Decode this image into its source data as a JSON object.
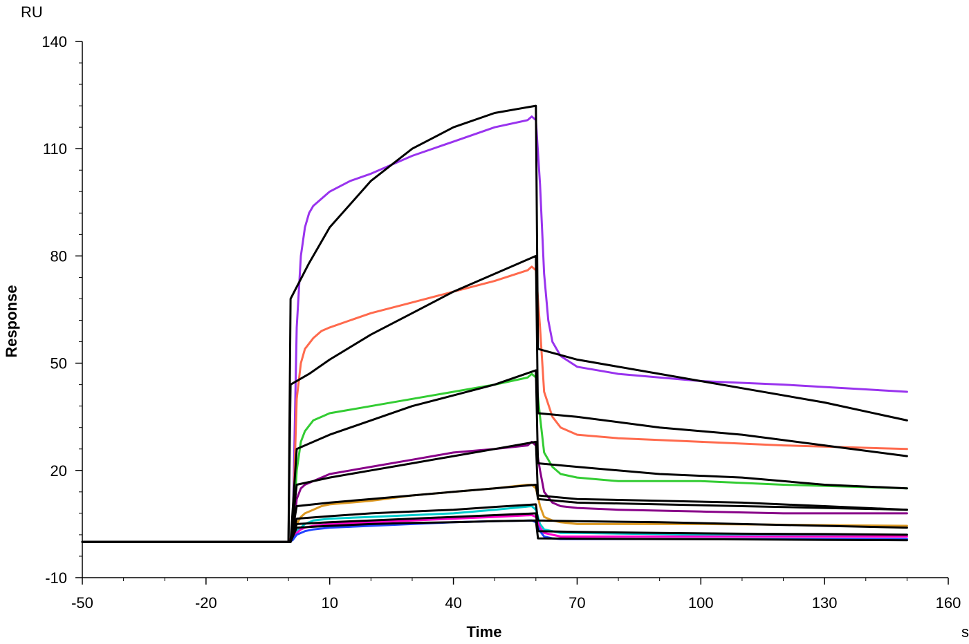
{
  "chart_data": {
    "type": "line",
    "title": "",
    "xlabel": "Time",
    "ylabel": "Response",
    "x_unit": "s",
    "y_unit": "RU",
    "xlim": [
      -50,
      160
    ],
    "ylim": [
      -10,
      140
    ],
    "x_ticks": [
      -50,
      -20,
      10,
      40,
      70,
      100,
      130,
      160
    ],
    "x_tick_labels": [
      "-50",
      "-20",
      "10",
      "40",
      "70",
      "100",
      "130",
      "160"
    ],
    "y_ticks": [
      -10,
      20,
      50,
      80,
      110,
      140
    ],
    "y_tick_labels": [
      "-10",
      "20",
      "50",
      "80",
      "110",
      "140"
    ],
    "grid": false,
    "legend": "none",
    "series": [
      {
        "color": "#9933ee",
        "x": [
          -50,
          0,
          1,
          2,
          3,
          4,
          5,
          6,
          8,
          10,
          15,
          20,
          30,
          40,
          50,
          58,
          59,
          60,
          61,
          62,
          63,
          64,
          66,
          70,
          80,
          100,
          120,
          150
        ],
        "y": [
          0,
          0,
          2,
          60,
          80,
          88,
          92,
          94,
          96,
          98,
          101,
          103,
          108,
          112,
          116,
          118,
          119,
          118,
          100,
          75,
          62,
          56,
          52,
          49,
          47,
          45,
          44,
          42
        ]
      },
      {
        "color": "#ff6a4d",
        "x": [
          -50,
          0,
          1,
          2,
          3,
          4,
          6,
          8,
          10,
          15,
          20,
          30,
          40,
          50,
          58,
          59,
          60,
          61,
          62,
          64,
          66,
          70,
          80,
          100,
          120,
          150
        ],
        "y": [
          0,
          0,
          2,
          40,
          50,
          54,
          57,
          59,
          60,
          62,
          64,
          67,
          70,
          73,
          76,
          77,
          76,
          60,
          42,
          35,
          32,
          30,
          29,
          28,
          27,
          26
        ]
      },
      {
        "color": "#33cc33",
        "x": [
          -50,
          0,
          1,
          2,
          3,
          4,
          6,
          8,
          10,
          15,
          20,
          30,
          40,
          50,
          58,
          59,
          60,
          61,
          62,
          64,
          66,
          70,
          80,
          100,
          120,
          150
        ],
        "y": [
          0,
          0,
          1,
          20,
          28,
          31,
          34,
          35,
          36,
          37,
          38,
          40,
          42,
          44,
          46,
          47,
          46,
          35,
          25,
          21,
          19,
          18,
          17,
          17,
          16,
          15
        ]
      },
      {
        "color": "#880088",
        "x": [
          -50,
          0,
          1,
          2,
          3,
          4,
          6,
          8,
          10,
          20,
          30,
          40,
          50,
          58,
          59,
          60,
          61,
          62,
          64,
          66,
          70,
          80,
          100,
          120,
          150
        ],
        "y": [
          0,
          0,
          1,
          12,
          15,
          16,
          17,
          18,
          19,
          21,
          23,
          25,
          26,
          27,
          28,
          27,
          20,
          14,
          11,
          10,
          9.5,
          9,
          8.5,
          8,
          8
        ]
      },
      {
        "color": "#dd9922",
        "x": [
          -50,
          0,
          1,
          2,
          3,
          4,
          6,
          8,
          10,
          20,
          30,
          40,
          50,
          58,
          59,
          60,
          61,
          62,
          64,
          66,
          70,
          100,
          150
        ],
        "y": [
          0,
          0,
          1,
          5,
          7,
          8,
          9,
          10,
          10.5,
          11.5,
          13,
          14,
          15,
          16,
          16,
          15,
          10,
          7,
          6,
          5.5,
          5,
          5,
          4.5
        ]
      },
      {
        "color": "#00cccc",
        "x": [
          -50,
          0,
          1,
          2,
          3,
          4,
          6,
          10,
          20,
          30,
          40,
          50,
          59,
          60,
          61,
          62,
          64,
          66,
          70,
          100,
          150
        ],
        "y": [
          0,
          0,
          1,
          3,
          4,
          5,
          6,
          6.5,
          7,
          7.5,
          8,
          9,
          10,
          9,
          5,
          3.5,
          3,
          2.5,
          2.5,
          2,
          2
        ]
      },
      {
        "color": "#ff00cc",
        "x": [
          -50,
          0,
          1,
          2,
          3,
          4,
          6,
          10,
          20,
          30,
          40,
          50,
          59,
          60,
          61,
          62,
          64,
          66,
          70,
          100,
          150
        ],
        "y": [
          0,
          0,
          1,
          2.5,
          3.5,
          4,
          4.5,
          5,
          5.5,
          6,
          6.5,
          7,
          7.5,
          7,
          4,
          2.5,
          2,
          1.5,
          1.5,
          1.5,
          1.5
        ]
      },
      {
        "color": "#2244ff",
        "x": [
          -50,
          0,
          1,
          2,
          3,
          4,
          6,
          10,
          20,
          30,
          40,
          50,
          59,
          60,
          61,
          62,
          64,
          66,
          70,
          100,
          150
        ],
        "y": [
          0,
          0,
          0.5,
          2,
          2.5,
          3,
          3.5,
          4,
          4.5,
          5,
          5.5,
          5.8,
          6,
          5.5,
          3,
          1.5,
          1,
          0.8,
          0.8,
          0.8,
          0.8
        ]
      },
      {
        "color": "#000000",
        "x": [
          -50,
          0,
          0.5,
          5,
          10,
          20,
          30,
          40,
          50,
          60,
          60.5,
          70,
          90,
          110,
          130,
          150
        ],
        "y": [
          0,
          0,
          68,
          78,
          88,
          101,
          110,
          116,
          120,
          122,
          54,
          51,
          47,
          43,
          39,
          34
        ]
      },
      {
        "color": "#000000",
        "x": [
          -50,
          0,
          0.5,
          5,
          10,
          20,
          30,
          40,
          50,
          60,
          60.5,
          70,
          90,
          110,
          130,
          150
        ],
        "y": [
          0,
          0,
          44,
          47,
          51,
          58,
          64,
          70,
          75,
          80,
          36,
          35,
          32,
          30,
          27,
          24
        ]
      },
      {
        "color": "#000000",
        "x": [
          -50,
          0,
          0.5,
          2,
          10,
          20,
          30,
          40,
          50,
          60,
          60.5,
          70,
          90,
          110,
          130,
          150
        ],
        "y": [
          0,
          0,
          0,
          26,
          30,
          34,
          38,
          41,
          44,
          48,
          22,
          21,
          19,
          18,
          16,
          15
        ]
      },
      {
        "color": "#000000",
        "x": [
          -50,
          0,
          0.5,
          2,
          10,
          20,
          30,
          40,
          50,
          60,
          60.5,
          70,
          90,
          110,
          130,
          150
        ],
        "y": [
          0,
          0,
          0,
          16,
          18,
          20,
          22,
          24,
          26,
          28,
          13,
          12,
          11.5,
          11,
          10,
          9
        ]
      },
      {
        "color": "#000000",
        "x": [
          -50,
          0,
          0.5,
          2,
          10,
          20,
          30,
          40,
          50,
          60,
          60.5,
          70,
          90,
          110,
          130,
          150
        ],
        "y": [
          0,
          0,
          0,
          10,
          11,
          12,
          13,
          14,
          15,
          16,
          12,
          11,
          10.5,
          10,
          9.5,
          9
        ]
      },
      {
        "color": "#000000",
        "x": [
          -50,
          0,
          0.5,
          2,
          10,
          20,
          30,
          40,
          50,
          60,
          60.5,
          70,
          90,
          110,
          130,
          150
        ],
        "y": [
          0,
          0,
          0,
          6.5,
          7.2,
          8,
          8.5,
          9,
          9.8,
          10.5,
          6,
          5.8,
          5.5,
          5,
          4.5,
          4
        ]
      },
      {
        "color": "#000000",
        "x": [
          -50,
          0,
          0.5,
          2,
          10,
          20,
          30,
          40,
          50,
          60,
          60.5,
          70,
          90,
          110,
          130,
          150
        ],
        "y": [
          0,
          0,
          0,
          5,
          5.5,
          6,
          6.5,
          7,
          7.5,
          8,
          3,
          2.8,
          2.5,
          2.3,
          2.2,
          2
        ]
      },
      {
        "color": "#000000",
        "x": [
          -50,
          0,
          0.5,
          2,
          10,
          20,
          30,
          40,
          50,
          60,
          60.5,
          70,
          90,
          110,
          130,
          150
        ],
        "y": [
          0,
          0,
          0,
          4,
          4.5,
          5,
          5.3,
          5.5,
          5.8,
          6,
          1,
          0.9,
          0.8,
          0.7,
          0.6,
          0.5
        ]
      }
    ]
  }
}
